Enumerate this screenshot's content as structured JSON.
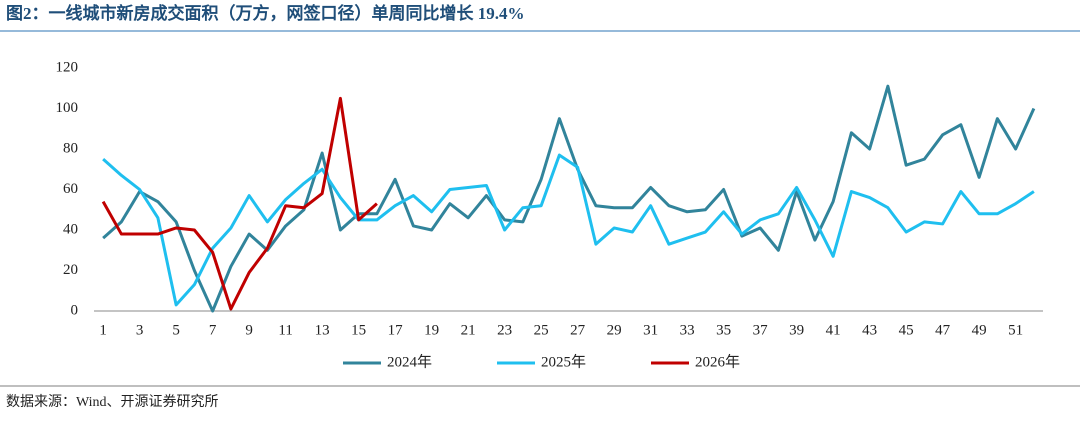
{
  "chart_data": {
    "type": "line",
    "title": "图2：一线城市新房成交面积（万方，网签口径）单周同比增长 19.4%",
    "source": "数据来源：Wind、开源证券研究所",
    "categories": [
      "1",
      null,
      "3",
      null,
      "5",
      null,
      "7",
      null,
      "9",
      null,
      "11",
      null,
      "13",
      null,
      "15",
      null,
      "17",
      null,
      "19",
      null,
      "21",
      null,
      "23",
      null,
      "25",
      null,
      "27",
      null,
      "29",
      null,
      "31",
      null,
      "33",
      null,
      "35",
      null,
      "37",
      null,
      "39",
      null,
      "41",
      null,
      "43",
      null,
      "45",
      null,
      "47",
      null,
      "49",
      null,
      "51",
      null
    ],
    "series": [
      {
        "name": "2024年",
        "color": "#31849b",
        "values": [
          36,
          44,
          59,
          54,
          44,
          20,
          0,
          22,
          38,
          30,
          42,
          50,
          78,
          40,
          48,
          48,
          65,
          42,
          40,
          53,
          46,
          57,
          45,
          44,
          65,
          95,
          70,
          52,
          51,
          51,
          61,
          52,
          49,
          50,
          60,
          37,
          41,
          30,
          59,
          35,
          54,
          88,
          80,
          111,
          72,
          75,
          87,
          92,
          66,
          95,
          80,
          100
        ]
      },
      {
        "name": "2025年",
        "color": "#1fbfef",
        "values": [
          75,
          67,
          60,
          46,
          3,
          13,
          31,
          41,
          57,
          44,
          55,
          63,
          70,
          56,
          45,
          45,
          52,
          57,
          49,
          60,
          61,
          62,
          40,
          51,
          52,
          77,
          71,
          33,
          41,
          39,
          52,
          33,
          36,
          39,
          49,
          38,
          45,
          48,
          61,
          45,
          27,
          59,
          56,
          51,
          39,
          44,
          43,
          59,
          48,
          48,
          53,
          59
        ]
      },
      {
        "name": "2026年",
        "color": "#c00000",
        "values": [
          54,
          38,
          38,
          38,
          41,
          40,
          29,
          1,
          19,
          31,
          52,
          51,
          58,
          105,
          45,
          53,
          null,
          null,
          null,
          null,
          null,
          null,
          null,
          null,
          null,
          null,
          null,
          null,
          null,
          null,
          null,
          null,
          null,
          null,
          null,
          null,
          null,
          null,
          null,
          null,
          null,
          null,
          null,
          null,
          null,
          null,
          null,
          null,
          null,
          null,
          null,
          null
        ]
      }
    ],
    "ylim": [
      0,
      120
    ],
    "yticks": [
      0,
      20,
      40,
      60,
      80,
      100,
      120
    ],
    "grid": false
  }
}
